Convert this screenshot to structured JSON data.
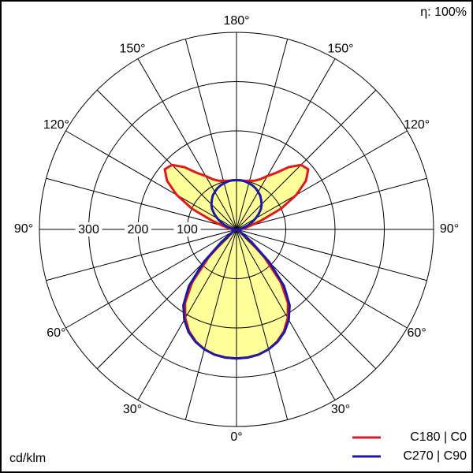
{
  "chart_data": {
    "type": "polar",
    "efficiency_label": "η: 100%",
    "unit_label": "cd/klm",
    "x": [
      0,
      5,
      10,
      15,
      20,
      25,
      30,
      35,
      40,
      45,
      50,
      55,
      60,
      65,
      70,
      75,
      80,
      85,
      90,
      95,
      100,
      105,
      110,
      115,
      120,
      125,
      130,
      135,
      140,
      145,
      150,
      155,
      160,
      165,
      170,
      175,
      180
    ],
    "series": [
      {
        "name": "C180 | C0",
        "color": "#e0191f",
        "values": [
          262,
          261,
          258,
          252,
          242,
          228,
          208,
          182,
          140,
          80,
          30,
          10,
          4,
          2,
          1,
          1,
          2,
          3,
          5,
          10,
          18,
          30,
          55,
          100,
          140,
          172,
          190,
          185,
          165,
          140,
          125,
          112,
          105,
          102,
          100,
          100,
          100
        ]
      },
      {
        "name": "C270 | C90",
        "color": "#1a1aa8",
        "values": [
          262,
          261,
          258,
          252,
          243,
          230,
          212,
          188,
          150,
          95,
          40,
          12,
          4,
          3,
          2,
          2,
          2,
          2,
          3,
          6,
          10,
          16,
          25,
          35,
          45,
          55,
          65,
          72,
          78,
          84,
          88,
          92,
          95,
          97,
          99,
          100,
          100
        ]
      }
    ],
    "fill_color": "#ffff99",
    "rlim": [
      0,
      400
    ],
    "rticks": [
      100,
      200,
      300
    ],
    "xticks": [
      {
        "value": 0,
        "label": "0°"
      },
      {
        "value": 30,
        "label": "30°"
      },
      {
        "value": 60,
        "label": "60°"
      },
      {
        "value": 90,
        "label": "90°"
      },
      {
        "value": 120,
        "label": "120°"
      },
      {
        "value": 150,
        "label": "150°"
      },
      {
        "value": 180,
        "label": "180°"
      }
    ],
    "xgrid": [
      0,
      15,
      30,
      45,
      60,
      75,
      90,
      105,
      120,
      135,
      150,
      165,
      180
    ]
  }
}
